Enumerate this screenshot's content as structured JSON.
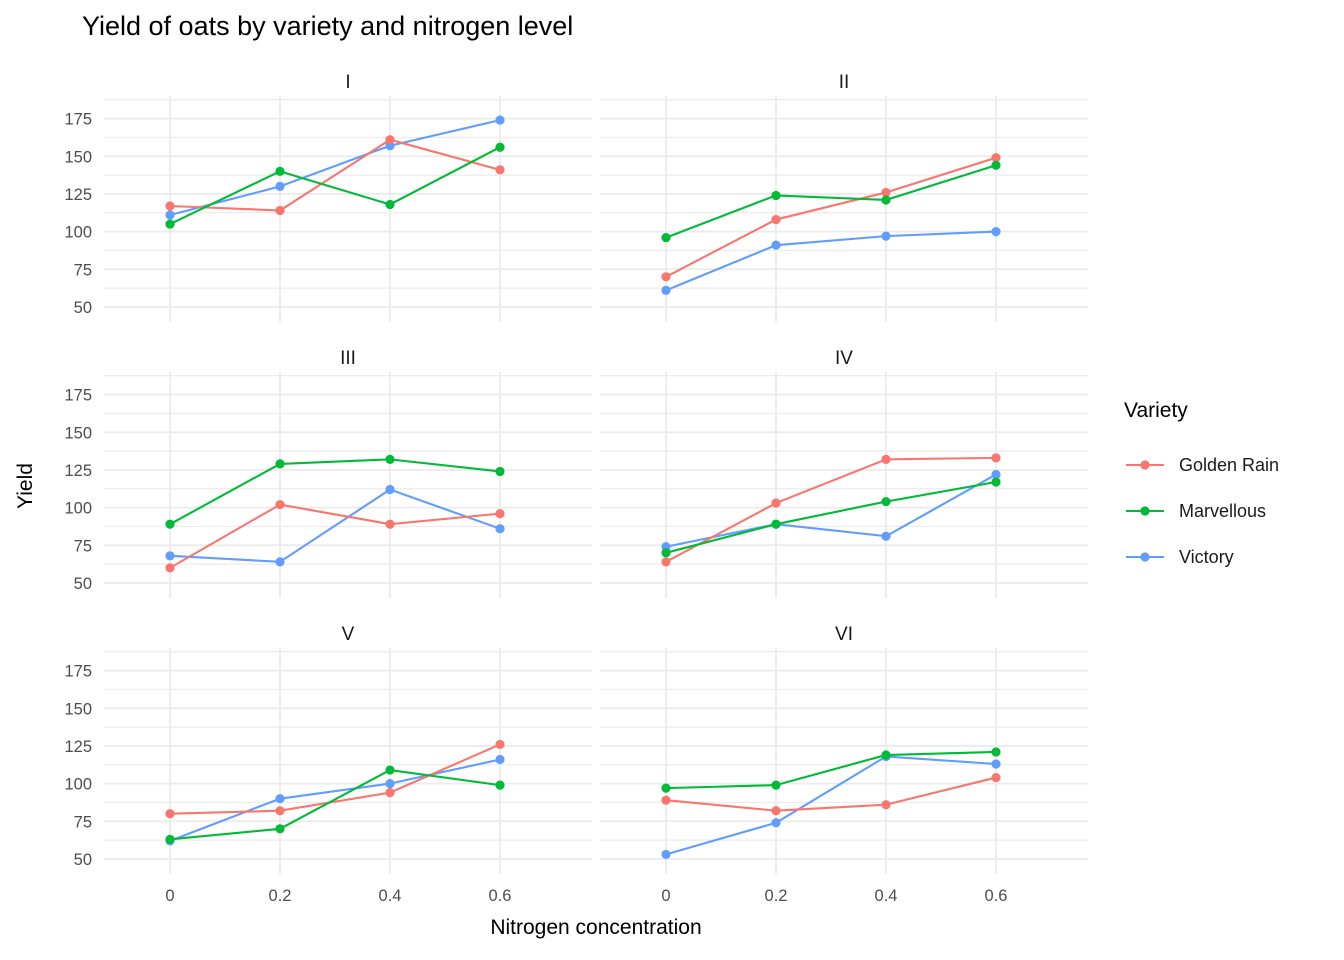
{
  "title": "Yield of oats by variety and nitrogen level",
  "axes": {
    "x_label": "Nitrogen concentration",
    "y_label": "Yield",
    "x_ticks": [
      "0",
      "0.2",
      "0.4",
      "0.6"
    ],
    "y_ticks": [
      "175",
      "150",
      "125",
      "100",
      "75",
      "50"
    ]
  },
  "legend": {
    "title": "Variety",
    "entries": [
      {
        "label": "Golden Rain",
        "color": "#F8766D"
      },
      {
        "label": "Marvellous",
        "color": "#00BA38"
      },
      {
        "label": "Victory",
        "color": "#619CFF"
      }
    ]
  },
  "colors": {
    "background": "#FFFFFF",
    "grid": "#EBEBEB",
    "axis_text": "#4D4D4D",
    "strip_text": "#1A1A1A",
    "title_text": "#000000",
    "golden_rain": "#F8766D",
    "marvellous": "#00BA38",
    "victory": "#619CFF"
  },
  "chart_data": {
    "type": "line",
    "title": "Yield of oats by variety and nitrogen level",
    "xlabel": "Nitrogen concentration",
    "ylabel": "Yield",
    "x": [
      0,
      0.2,
      0.4,
      0.6
    ],
    "x_tick_labels": [
      "0",
      "0.2",
      "0.4",
      "0.6"
    ],
    "ylim": [
      40,
      190
    ],
    "y_major_gridlines": [
      50,
      75,
      100,
      125,
      150,
      175
    ],
    "y_minor_gridlines": [
      62.5,
      87.5,
      112.5,
      137.5,
      162.5,
      187.5
    ],
    "grid": true,
    "legend_position": "right",
    "facet_layout": {
      "rows": 3,
      "cols": 2
    },
    "series_names": [
      "Golden Rain",
      "Marvellous",
      "Victory"
    ],
    "draw_order": [
      "Victory",
      "Golden Rain",
      "Marvellous"
    ],
    "facets": [
      {
        "name": "I",
        "series": [
          {
            "name": "Golden Rain",
            "values": [
              117,
              114,
              161,
              141
            ]
          },
          {
            "name": "Marvellous",
            "values": [
              105,
              140,
              118,
              156
            ]
          },
          {
            "name": "Victory",
            "values": [
              111,
              130,
              157,
              174
            ]
          }
        ]
      },
      {
        "name": "II",
        "series": [
          {
            "name": "Golden Rain",
            "values": [
              70,
              108,
              126,
              149
            ]
          },
          {
            "name": "Marvellous",
            "values": [
              96,
              124,
              121,
              144
            ]
          },
          {
            "name": "Victory",
            "values": [
              61,
              91,
              97,
              100
            ]
          }
        ]
      },
      {
        "name": "III",
        "series": [
          {
            "name": "Golden Rain",
            "values": [
              60,
              102,
              89,
              96
            ]
          },
          {
            "name": "Marvellous",
            "values": [
              89,
              129,
              132,
              124
            ]
          },
          {
            "name": "Victory",
            "values": [
              68,
              64,
              112,
              86
            ]
          }
        ]
      },
      {
        "name": "IV",
        "series": [
          {
            "name": "Golden Rain",
            "values": [
              64,
              103,
              132,
              133
            ]
          },
          {
            "name": "Marvellous",
            "values": [
              70,
              89,
              104,
              117
            ]
          },
          {
            "name": "Victory",
            "values": [
              74,
              89,
              81,
              122
            ]
          }
        ]
      },
      {
        "name": "V",
        "series": [
          {
            "name": "Golden Rain",
            "values": [
              80,
              82,
              94,
              126
            ]
          },
          {
            "name": "Marvellous",
            "values": [
              63,
              70,
              109,
              99
            ]
          },
          {
            "name": "Victory",
            "values": [
              62,
              90,
              100,
              116
            ]
          }
        ]
      },
      {
        "name": "VI",
        "series": [
          {
            "name": "Golden Rain",
            "values": [
              89,
              82,
              86,
              104
            ]
          },
          {
            "name": "Marvellous",
            "values": [
              97,
              99,
              119,
              121
            ]
          },
          {
            "name": "Victory",
            "values": [
              53,
              74,
              118,
              113
            ]
          }
        ]
      }
    ]
  }
}
